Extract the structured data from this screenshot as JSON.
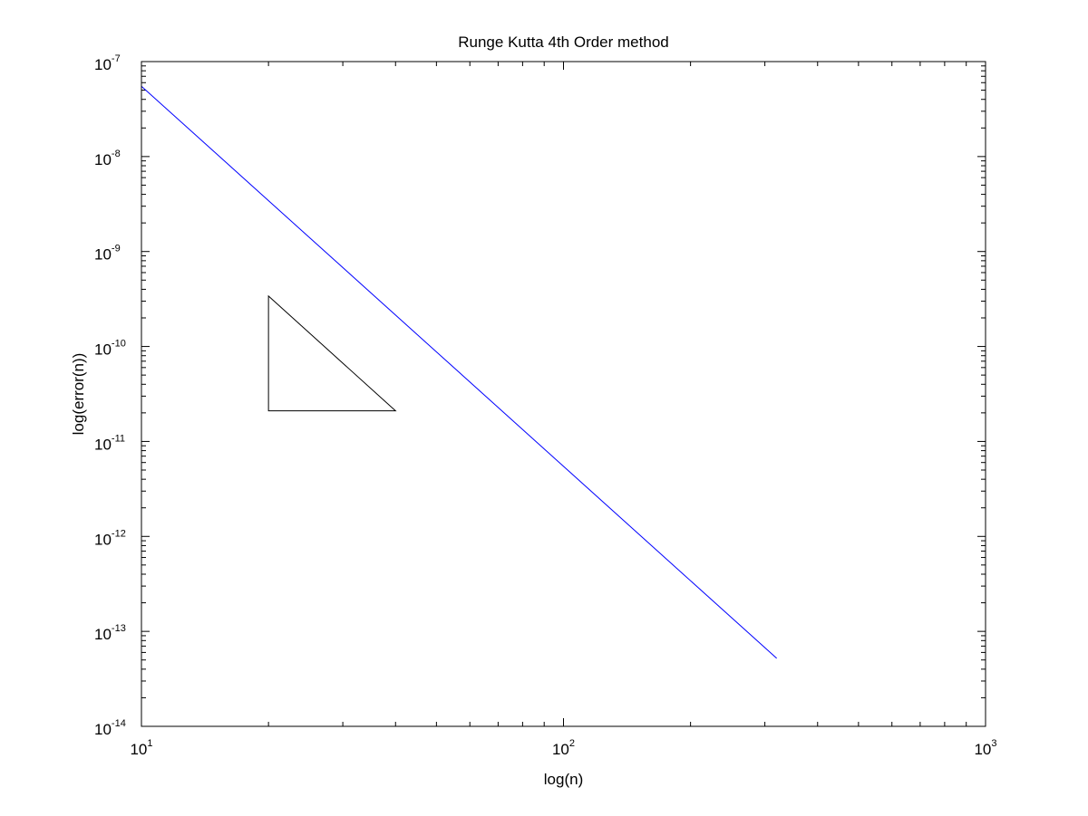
{
  "chart_data": {
    "type": "line",
    "title": "Runge Kutta 4th Order method",
    "xlabel": "log(n)",
    "ylabel": "log(error(n))",
    "x_scale": "log",
    "y_scale": "log",
    "xlim": [
      10,
      1000
    ],
    "ylim": [
      1e-14,
      1e-07
    ],
    "grid": false,
    "x_ticks": [
      {
        "base": "10",
        "exp": "1",
        "value": 10
      },
      {
        "base": "10",
        "exp": "2",
        "value": 100
      },
      {
        "base": "10",
        "exp": "3",
        "value": 1000
      }
    ],
    "y_ticks": [
      {
        "base": "10",
        "exp": "-7",
        "value": 1e-07
      },
      {
        "base": "10",
        "exp": "-8",
        "value": 1e-08
      },
      {
        "base": "10",
        "exp": "-9",
        "value": 1e-09
      },
      {
        "base": "10",
        "exp": "-10",
        "value": 1e-10
      },
      {
        "base": "10",
        "exp": "-11",
        "value": 1e-11
      },
      {
        "base": "10",
        "exp": "-12",
        "value": 1e-12
      },
      {
        "base": "10",
        "exp": "-13",
        "value": 1e-13
      },
      {
        "base": "10",
        "exp": "-14",
        "value": 1e-14
      }
    ],
    "series": [
      {
        "color": "#0000ff",
        "x": [
          10,
          320
        ],
        "y": [
          5.5e-08,
          5.2e-14
        ]
      }
    ],
    "annotations": [
      {
        "type": "slope-triangle",
        "color": "#000000",
        "points": [
          [
            20,
            3.4e-10
          ],
          [
            20,
            2.1e-11
          ],
          [
            40,
            2.1e-11
          ]
        ]
      }
    ]
  }
}
